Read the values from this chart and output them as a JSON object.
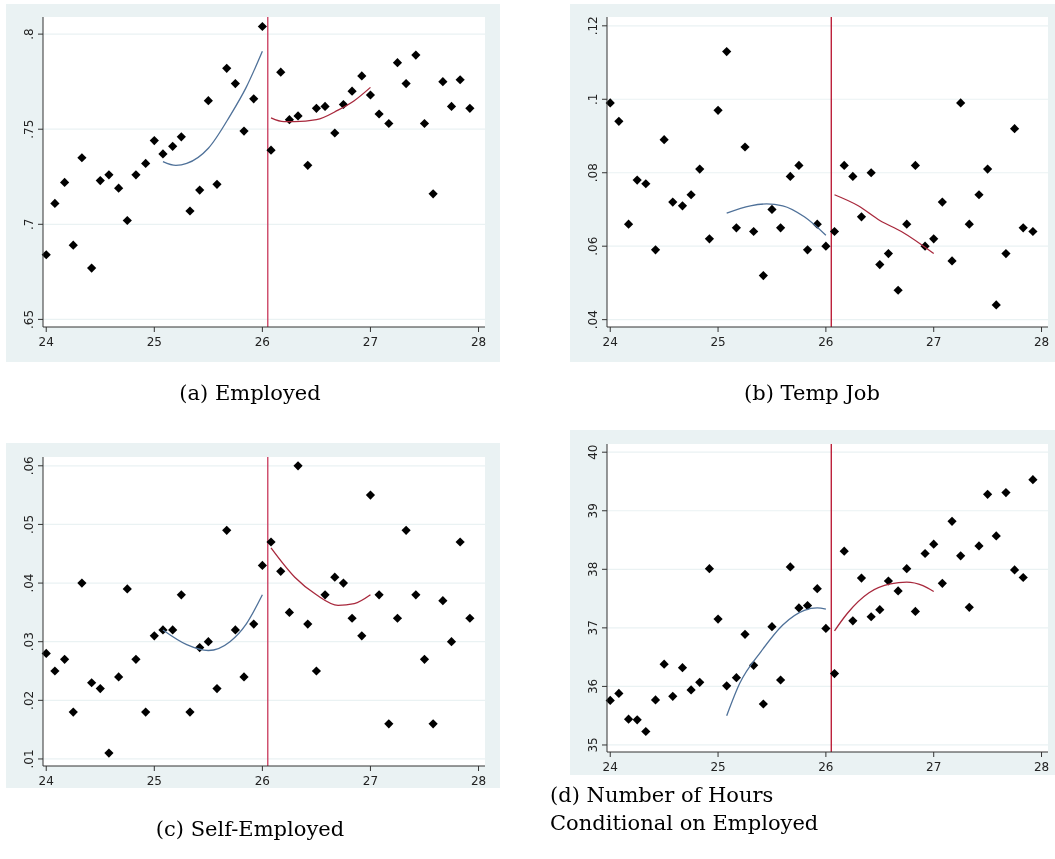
{
  "chart_data": [
    {
      "type": "scatter",
      "title": "(a) Employed",
      "grid": "y",
      "x": [
        24,
        24.08,
        24.17,
        24.25,
        24.33,
        24.42,
        24.5,
        24.58,
        24.67,
        24.75,
        24.83,
        24.92,
        25,
        25.08,
        25.17,
        25.25,
        25.33,
        25.42,
        25.5,
        25.58,
        25.67,
        25.75,
        25.83,
        25.92,
        26,
        26.08,
        26.17,
        26.25,
        26.33,
        26.42,
        26.5,
        26.58,
        26.67,
        26.75,
        26.83,
        26.92,
        27,
        27.08,
        27.17,
        27.25,
        27.33,
        27.42,
        27.5,
        27.58,
        27.67,
        27.75,
        27.83,
        27.92
      ],
      "xlim": [
        23.97,
        28.06
      ],
      "xticks": [
        24,
        25,
        26,
        27,
        28
      ],
      "ylim": [
        0.646,
        0.809
      ],
      "yticks": [
        {
          "value": 0.65,
          "label": ".65"
        },
        {
          "value": 0.7,
          "label": ".7"
        },
        {
          "value": 0.75,
          "label": ".75"
        },
        {
          "value": 0.8,
          "label": ".8"
        }
      ],
      "ref_lines": [
        {
          "axis": "x",
          "value": 26.05,
          "color": "#c8385a"
        }
      ],
      "series": [
        {
          "marker": "diamond",
          "color": "#000000",
          "values": [
            0.684,
            0.711,
            0.722,
            0.689,
            0.735,
            0.677,
            0.723,
            0.726,
            0.719,
            0.702,
            0.726,
            0.732,
            0.744,
            0.737,
            0.741,
            0.746,
            0.707,
            0.718,
            0.765,
            0.721,
            0.782,
            0.774,
            0.749,
            0.766,
            0.804,
            0.739,
            0.78,
            0.755,
            0.757,
            0.731,
            0.761,
            0.762,
            0.748,
            0.763,
            0.77,
            0.778,
            0.768,
            0.758,
            0.753,
            0.785,
            0.774,
            0.789,
            0.753,
            0.716,
            0.775,
            0.762,
            0.776,
            0.761
          ]
        },
        {
          "type": "line",
          "color": "#4f7199",
          "x": [
            25.08,
            25.2,
            25.3,
            25.5,
            25.7,
            25.85,
            26.0
          ],
          "values": [
            0.733,
            0.731,
            0.732,
            0.74,
            0.757,
            0.772,
            0.791
          ]
        },
        {
          "type": "line",
          "color": "#a8283c",
          "x": [
            26.08,
            26.2,
            26.3,
            26.5,
            26.7,
            26.85,
            27.0
          ],
          "values": [
            0.756,
            0.754,
            0.754,
            0.755,
            0.76,
            0.765,
            0.772
          ]
        }
      ]
    },
    {
      "type": "scatter",
      "title": "(b) Temp Job",
      "grid": "y",
      "x": [
        24,
        24.08,
        24.17,
        24.25,
        24.33,
        24.42,
        24.5,
        24.58,
        24.67,
        24.75,
        24.83,
        24.92,
        25,
        25.08,
        25.17,
        25.25,
        25.33,
        25.42,
        25.5,
        25.58,
        25.67,
        25.75,
        25.83,
        25.92,
        26,
        26.08,
        26.17,
        26.25,
        26.33,
        26.42,
        26.5,
        26.58,
        26.67,
        26.75,
        26.83,
        26.92,
        27,
        27.08,
        27.17,
        27.25,
        27.33,
        27.42,
        27.5,
        27.58,
        27.67,
        27.75,
        27.83,
        27.92
      ],
      "xlim": [
        23.97,
        28.06
      ],
      "xticks": [
        24,
        25,
        26,
        27,
        28
      ],
      "ylim": [
        0.038,
        0.1224
      ],
      "yticks": [
        {
          "value": 0.04,
          "label": ".04"
        },
        {
          "value": 0.06,
          "label": ".06"
        },
        {
          "value": 0.08,
          "label": ".08"
        },
        {
          "value": 0.1,
          "label": ".1"
        },
        {
          "value": 0.12,
          "label": ".12"
        }
      ],
      "ref_lines": [
        {
          "axis": "x",
          "value": 26.05,
          "color": "#b8102c"
        }
      ],
      "series": [
        {
          "marker": "diamond",
          "color": "#000000",
          "values": [
            0.099,
            0.094,
            0.066,
            0.078,
            0.077,
            0.059,
            0.089,
            0.072,
            0.071,
            0.074,
            0.081,
            0.062,
            0.097,
            0.113,
            0.065,
            0.087,
            0.064,
            0.052,
            0.07,
            0.065,
            0.079,
            0.082,
            0.059,
            0.066,
            0.06,
            0.064,
            0.082,
            0.079,
            0.068,
            0.08,
            0.055,
            0.058,
            0.048,
            0.066,
            0.082,
            0.06,
            0.062,
            0.072,
            0.056,
            0.099,
            0.066,
            0.074,
            0.081,
            0.044,
            0.058,
            0.092,
            0.065,
            0.064
          ]
        },
        {
          "type": "line",
          "color": "#4f7199",
          "x": [
            25.08,
            25.3,
            25.45,
            25.6,
            25.8,
            26.0
          ],
          "values": [
            0.069,
            0.071,
            0.0715,
            0.071,
            0.068,
            0.063
          ]
        },
        {
          "type": "line",
          "color": "#a8283c",
          "x": [
            26.08,
            26.3,
            26.5,
            26.7,
            27.0
          ],
          "values": [
            0.074,
            0.071,
            0.067,
            0.064,
            0.058
          ]
        }
      ]
    },
    {
      "type": "scatter",
      "title": "(c) Self-Employed",
      "grid": "y",
      "x": [
        24,
        24.08,
        24.17,
        24.25,
        24.33,
        24.42,
        24.5,
        24.58,
        24.67,
        24.75,
        24.83,
        24.92,
        25,
        25.08,
        25.17,
        25.25,
        25.33,
        25.42,
        25.5,
        25.58,
        25.67,
        25.75,
        25.83,
        25.92,
        26,
        26.08,
        26.17,
        26.25,
        26.33,
        26.42,
        26.5,
        26.58,
        26.67,
        26.75,
        26.83,
        26.92,
        27,
        27.08,
        27.17,
        27.25,
        27.33,
        27.42,
        27.5,
        27.58,
        27.67,
        27.75,
        27.83,
        27.92
      ],
      "xlim": [
        23.97,
        28.06
      ],
      "xticks": [
        24,
        25,
        26,
        27,
        28
      ],
      "ylim": [
        0.0088,
        0.0615
      ],
      "yticks": [
        {
          "value": 0.01,
          "label": ".01"
        },
        {
          "value": 0.02,
          "label": ".02"
        },
        {
          "value": 0.03,
          "label": ".03"
        },
        {
          "value": 0.04,
          "label": ".04"
        },
        {
          "value": 0.05,
          "label": ".05"
        },
        {
          "value": 0.06,
          "label": ".06"
        }
      ],
      "ref_lines": [
        {
          "axis": "x",
          "value": 26.05,
          "color": "#c8385a"
        }
      ],
      "series": [
        {
          "marker": "diamond",
          "color": "#000000",
          "values": [
            0.028,
            0.025,
            0.027,
            0.018,
            0.04,
            0.023,
            0.022,
            0.011,
            0.024,
            0.039,
            0.027,
            0.018,
            0.031,
            0.032,
            0.032,
            0.038,
            0.018,
            0.029,
            0.03,
            0.022,
            0.049,
            0.032,
            0.024,
            0.033,
            0.043,
            0.047,
            0.042,
            0.035,
            0.06,
            0.033,
            0.025,
            0.038,
            0.041,
            0.04,
            0.034,
            0.031,
            0.055,
            0.038,
            0.016,
            0.034,
            0.049,
            0.038,
            0.027,
            0.016,
            0.037,
            0.03,
            0.047,
            0.034
          ]
        },
        {
          "type": "line",
          "color": "#4f7199",
          "x": [
            25.08,
            25.3,
            25.5,
            25.7,
            25.85,
            26.0
          ],
          "values": [
            0.032,
            0.0295,
            0.0285,
            0.03,
            0.033,
            0.038
          ]
        },
        {
          "type": "line",
          "color": "#a8283c",
          "x": [
            26.08,
            26.3,
            26.5,
            26.7,
            26.85,
            27.0
          ],
          "values": [
            0.046,
            0.041,
            0.038,
            0.0362,
            0.0365,
            0.038
          ]
        }
      ]
    },
    {
      "type": "scatter",
      "title": "(d) Number of Hours\nConditional on Employed",
      "grid": "y",
      "x": [
        24,
        24.08,
        24.17,
        24.25,
        24.33,
        24.42,
        24.5,
        24.58,
        24.67,
        24.75,
        24.83,
        24.92,
        25,
        25.08,
        25.17,
        25.25,
        25.33,
        25.42,
        25.5,
        25.58,
        25.67,
        25.75,
        25.83,
        25.92,
        26,
        26.08,
        26.17,
        26.25,
        26.33,
        26.42,
        26.5,
        26.58,
        26.67,
        26.75,
        26.83,
        26.92,
        27,
        27.08,
        27.17,
        27.25,
        27.33,
        27.42,
        27.5,
        27.58,
        27.67,
        27.75,
        27.83,
        27.92
      ],
      "xlim": [
        23.97,
        28.06
      ],
      "xticks": [
        24,
        25,
        26,
        27,
        28
      ],
      "ylim": [
        34.88,
        40.14
      ],
      "yticks": [
        35,
        36,
        37,
        38,
        39,
        40
      ],
      "ref_lines": [
        {
          "axis": "x",
          "value": 26.05,
          "color": "#b8102c"
        }
      ],
      "series": [
        {
          "marker": "diamond",
          "color": "#000000",
          "values": [
            35.76,
            35.88,
            35.44,
            35.43,
            35.23,
            35.77,
            36.38,
            35.83,
            36.32,
            35.94,
            36.07,
            38.01,
            37.15,
            36.01,
            36.15,
            36.89,
            36.36,
            35.7,
            37.02,
            36.11,
            38.04,
            37.34,
            37.38,
            37.67,
            36.99,
            36.22,
            38.31,
            37.12,
            37.85,
            37.19,
            37.31,
            37.8,
            37.63,
            38.01,
            37.28,
            38.27,
            38.43,
            37.76,
            38.82,
            38.23,
            37.35,
            38.4,
            39.28,
            38.57,
            39.31,
            37.99,
            37.86,
            39.53
          ]
        },
        {
          "type": "line",
          "color": "#4f7199",
          "x": [
            25.08,
            25.2,
            25.4,
            25.6,
            25.8,
            25.92,
            26.0
          ],
          "values": [
            35.5,
            36.05,
            36.6,
            37.05,
            37.3,
            37.34,
            37.32
          ]
        },
        {
          "type": "line",
          "color": "#a8283c",
          "x": [
            26.08,
            26.2,
            26.4,
            26.6,
            26.75,
            26.9,
            27.0
          ],
          "values": [
            36.95,
            37.25,
            37.6,
            37.75,
            37.78,
            37.72,
            37.62
          ]
        }
      ]
    }
  ]
}
